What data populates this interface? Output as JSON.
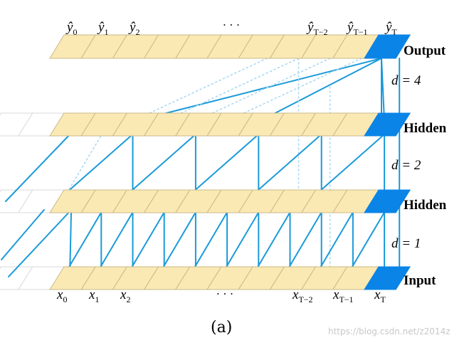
{
  "colors": {
    "cell_fill": "#fbe9b4",
    "cell_stroke": "#c9b98a",
    "highlight": "#0a84e6",
    "edge": "#1a9ad9",
    "faint_edge": "#a9d9f3",
    "faint_cell": "#d8d8d8",
    "text": "#111111",
    "watermark": "#c8c8c8"
  },
  "layers": {
    "output": "Output",
    "hidden_top": "Hidden",
    "hidden_bottom": "Hidden",
    "input": "Input"
  },
  "dilations": {
    "d4": "d = 4",
    "d2": "d = 2",
    "d1": "d = 1"
  },
  "output_labels": {
    "y0": "ŷ",
    "y0_sub": "0",
    "y1": "ŷ",
    "y1_sub": "1",
    "y2": "ŷ",
    "y2_sub": "2",
    "ellipsis": "· · ·",
    "yT2": "ŷ",
    "yT2_sub": "T−2",
    "yT1": "ŷ",
    "yT1_sub": "T−1",
    "yT": "ŷ",
    "yT_sub": "T"
  },
  "input_labels": {
    "x0": "x",
    "x0_sub": "0",
    "x1": "x",
    "x1_sub": "1",
    "x2": "x",
    "x2_sub": "2",
    "ellipsis": "· · ·",
    "xT2": "x",
    "xT2_sub": "T−2",
    "xT1": "x",
    "xT1_sub": "T−1",
    "xT": "x",
    "xT_sub": "T"
  },
  "caption": "(a)",
  "watermark": "https://blog.csdn.net/z2014z"
}
